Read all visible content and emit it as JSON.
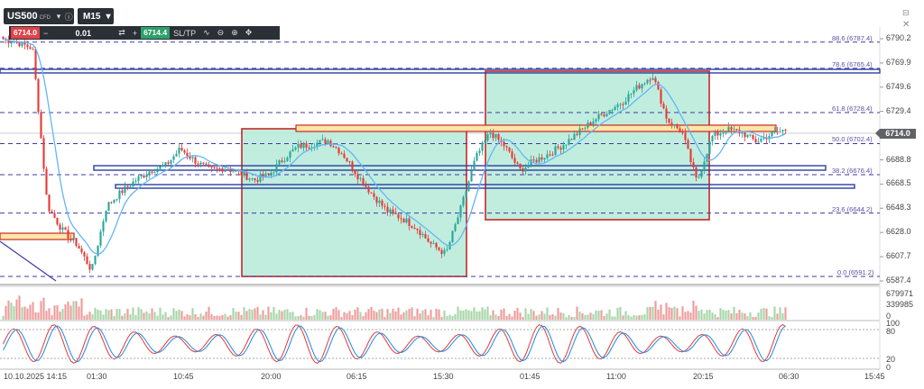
{
  "header": {
    "symbol": "US500",
    "symbol_type": "CFD",
    "timeframe": "M15",
    "sell_price": "6714.0",
    "quantity": "0.01",
    "buy_price": "6714.4",
    "sltp_label": "SL/TP",
    "minus": "−",
    "plus": "+"
  },
  "window": {
    "icons": [
      "minimize-icon",
      "close-icon"
    ]
  },
  "price_axis": {
    "labels": [
      "6790.2",
      "6769.9",
      "6749.6",
      "6729.4",
      "6709.1",
      "6688.8",
      "6668.5",
      "6648.3",
      "6628.0",
      "6607.7",
      "6587.4"
    ],
    "current_price": "6714.0"
  },
  "fib_labels": [
    "88.6 (6787.4)",
    "78.6 (6765.4)",
    "61.8 (6728.4)",
    "50.0 (6702.4)",
    "38.2 (6676.4)",
    "23.6 (6644.2)",
    "0.0 (6591.2)"
  ],
  "volume_axis": [
    "679971",
    "339985",
    "0"
  ],
  "oscillator_axis": [
    "100",
    "80",
    "20",
    "0"
  ],
  "time_axis": [
    "10.10.2025 14:15",
    "01:30",
    "10:45",
    "20:00",
    "06:15",
    "15:30",
    "01:45",
    "11:00",
    "20:15",
    "06:30",
    "15:45"
  ],
  "colors": {
    "bull": "#26a69a",
    "bear": "#e53935",
    "zone_fill": "#b6ead8",
    "zone_border": "#c62828",
    "fib_line": "#3f3aa8",
    "ma_line": "#64b5f6"
  },
  "chart_data": {
    "type": "candlestick",
    "symbol": "US500",
    "timeframe": "M15",
    "ylim": [
      6587.4,
      6790.2
    ],
    "price_series_approx": [
      6790,
      6787,
      6782,
      6650,
      6630,
      6618,
      6596,
      6650,
      6662,
      6672,
      6680,
      6684,
      6698,
      6688,
      6680,
      6682,
      6678,
      6672,
      6676,
      6690,
      6700,
      6702,
      6705,
      6694,
      6676,
      6660,
      6646,
      6640,
      6632,
      6618,
      6610,
      6648,
      6690,
      6712,
      6700,
      6680,
      6688,
      6694,
      6702,
      6712,
      6722,
      6730,
      6738,
      6750,
      6760,
      6722,
      6712,
      6670,
      6708,
      6714,
      6712,
      6704,
      6710,
      6714
    ],
    "fibonacci": [
      {
        "level": 88.6,
        "price": 6787.4
      },
      {
        "level": 78.6,
        "price": 6765.4
      },
      {
        "level": 61.8,
        "price": 6728.4
      },
      {
        "level": 50.0,
        "price": 6702.4
      },
      {
        "level": 38.2,
        "price": 6676.4
      },
      {
        "level": 23.6,
        "price": 6644.2
      },
      {
        "level": 0.0,
        "price": 6591.2
      }
    ],
    "volume_ylim": [
      0,
      679971
    ],
    "oscillator_ylim": [
      0,
      100
    ]
  }
}
